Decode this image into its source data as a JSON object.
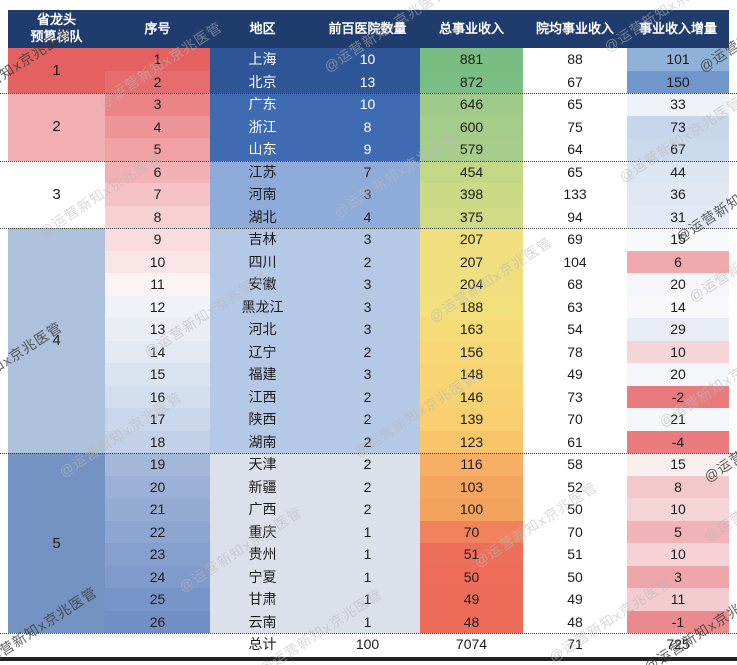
{
  "watermark": {
    "text": "@运营新知x京兆医管",
    "light_color": "#b9b9b9",
    "dark_color": "#3a3a3a"
  },
  "style": {
    "header_bg": "#203C6C",
    "header_fg": "#FFFFFF",
    "body_fg": "#1B1B1B"
  },
  "chart_data": {
    "type": "table",
    "title": "",
    "columns": [
      "省龙头\n预算梯队",
      "序号",
      "地区",
      "前百医院数量",
      "总事业收入",
      "院均事业收入",
      "事业收入增量"
    ],
    "tiers": [
      {
        "label": "1",
        "row_span": 2,
        "bg": "#E36161"
      },
      {
        "label": "2",
        "row_span": 3,
        "bg": "#F2AFB2"
      },
      {
        "label": "3",
        "row_span": 3,
        "bg": "#FFFFFF"
      },
      {
        "label": "4",
        "row_span": 10,
        "bg": "#ADC0DC"
      },
      {
        "label": "5",
        "row_span": 8,
        "bg": "#7593C2"
      }
    ],
    "rows": [
      {
        "rank": "1",
        "region": "上海",
        "hospitals": "10",
        "total": "881",
        "avg": "88",
        "inc": "101",
        "rank_bg": "#E36161",
        "block_bg": "#2E5596",
        "block_fg": "#FFFFFF",
        "total_bg": "#79BD83",
        "inc_bg": "#8FB0D7"
      },
      {
        "rank": "2",
        "region": "北京",
        "hospitals": "13",
        "total": "872",
        "avg": "67",
        "inc": "150",
        "rank_bg": "#E66C6D",
        "block_bg": "#2E5596",
        "block_fg": "#FFFFFF",
        "total_bg": "#7BBE84",
        "inc_bg": "#7096CC"
      },
      {
        "rank": "3",
        "region": "广东",
        "hospitals": "10",
        "total": "646",
        "avg": "65",
        "inc": "33",
        "rank_bg": "#EA8486",
        "block_bg": "#3E6BB2",
        "block_fg": "#FFFFFF",
        "total_bg": "#9FCA8A",
        "inc_bg": "#EFF3F8"
      },
      {
        "rank": "4",
        "region": "浙江",
        "hospitals": "8",
        "total": "600",
        "avg": "75",
        "inc": "73",
        "rank_bg": "#ED9597",
        "block_bg": "#3E6BB2",
        "block_fg": "#FFFFFF",
        "total_bg": "#A4CC8B",
        "inc_bg": "#C7D6EA"
      },
      {
        "rank": "5",
        "region": "山东",
        "hospitals": "9",
        "total": "579",
        "avg": "64",
        "inc": "67",
        "rank_bg": "#EFA1A3",
        "block_bg": "#3E6BB2",
        "block_fg": "#FFFFFF",
        "total_bg": "#A7CD8C",
        "inc_bg": "#CBD9EC"
      },
      {
        "rank": "6",
        "region": "江苏",
        "hospitals": "7",
        "total": "454",
        "avg": "65",
        "inc": "44",
        "rank_bg": "#F2B1B3",
        "block_bg": "#8FABD9",
        "block_fg": "#1B1B1B",
        "total_bg": "#C4D787",
        "inc_bg": "#DCE5F2"
      },
      {
        "rank": "7",
        "region": "河南",
        "hospitals": "3",
        "total": "398",
        "avg": "133",
        "inc": "36",
        "rank_bg": "#F5C3C5",
        "block_bg": "#8FABD9",
        "block_fg": "#1B1B1B",
        "total_bg": "#CBDA85",
        "inc_bg": "#E1E8F4"
      },
      {
        "rank": "8",
        "region": "湖北",
        "hospitals": "4",
        "total": "375",
        "avg": "94",
        "inc": "31",
        "rank_bg": "#F7D0D2",
        "block_bg": "#8FABD9",
        "block_fg": "#1B1B1B",
        "total_bg": "#CEDB84",
        "inc_bg": "#E4EAF5"
      },
      {
        "rank": "9",
        "region": "吉林",
        "hospitals": "3",
        "total": "207",
        "avg": "69",
        "inc": "15",
        "rank_bg": "#F9DCDD",
        "block_bg": "#B5C8E6",
        "block_fg": "#1B1B1B",
        "total_bg": "#EFDF7F",
        "inc_bg": "#F7F9FB"
      },
      {
        "rank": "10",
        "region": "四川",
        "hospitals": "2",
        "total": "207",
        "avg": "104",
        "inc": "6",
        "rank_bg": "#FAE5E6",
        "block_bg": "#B5C8E6",
        "block_fg": "#1B1B1B",
        "total_bg": "#EFDF7F",
        "inc_bg": "#F0A9AD"
      },
      {
        "rank": "11",
        "region": "安徽",
        "hospitals": "3",
        "total": "204",
        "avg": "68",
        "inc": "20",
        "rank_bg": "#FBF3F3",
        "block_bg": "#B5C8E6",
        "block_fg": "#1B1B1B",
        "total_bg": "#F0DF7E",
        "inc_bg": "#F4F6F9"
      },
      {
        "rank": "12",
        "region": "黑龙江",
        "hospitals": "3",
        "total": "188",
        "avg": "63",
        "inc": "14",
        "rank_bg": "#EFF3F8",
        "block_bg": "#B5C8E6",
        "block_fg": "#1B1B1B",
        "total_bg": "#F2DF7D",
        "inc_bg": "#F9F9FB"
      },
      {
        "rank": "13",
        "region": "河北",
        "hospitals": "3",
        "total": "163",
        "avg": "54",
        "inc": "29",
        "rank_bg": "#E9EEF5",
        "block_bg": "#B5C8E6",
        "block_fg": "#1B1B1B",
        "total_bg": "#F6DB79",
        "inc_bg": "#E8EDF5"
      },
      {
        "rank": "14",
        "region": "辽宁",
        "hospitals": "2",
        "total": "156",
        "avg": "78",
        "inc": "10",
        "rank_bg": "#E2E9F3",
        "block_bg": "#B5C8E6",
        "block_fg": "#1B1B1B",
        "total_bg": "#F7D776",
        "inc_bg": "#F6D5D8"
      },
      {
        "rank": "15",
        "region": "福建",
        "hospitals": "3",
        "total": "148",
        "avg": "49",
        "inc": "20",
        "rank_bg": "#DAE3F0",
        "block_bg": "#B5C8E6",
        "block_fg": "#1B1B1B",
        "total_bg": "#F8D473",
        "inc_bg": "#F4F6F9"
      },
      {
        "rank": "16",
        "region": "江西",
        "hospitals": "2",
        "total": "146",
        "avg": "73",
        "inc": "-2",
        "rank_bg": "#D2DDED",
        "block_bg": "#B5C8E6",
        "block_fg": "#1B1B1B",
        "total_bg": "#F8D273",
        "inc_bg": "#E97B7E"
      },
      {
        "rank": "17",
        "region": "陕西",
        "hospitals": "2",
        "total": "139",
        "avg": "70",
        "inc": "21",
        "rank_bg": "#CAD7EA",
        "block_bg": "#B5C8E6",
        "block_fg": "#1B1B1B",
        "total_bg": "#F9CE6F",
        "inc_bg": "#F4F6F9"
      },
      {
        "rank": "18",
        "region": "湖南",
        "hospitals": "2",
        "total": "123",
        "avg": "61",
        "inc": "-4",
        "rank_bg": "#C2D1E7",
        "block_bg": "#B5C8E6",
        "block_fg": "#1B1B1B",
        "total_bg": "#FAC569",
        "inc_bg": "#E97B7E"
      },
      {
        "rank": "19",
        "region": "天津",
        "hospitals": "2",
        "total": "116",
        "avg": "58",
        "inc": "15",
        "rank_bg": "#A2B7DA",
        "block_bg": "#DBE0EB",
        "block_fg": "#1B1B1B",
        "total_bg": "#F6AF64",
        "inc_bg": "#F9EFEF"
      },
      {
        "rank": "20",
        "region": "新疆",
        "hospitals": "2",
        "total": "103",
        "avg": "52",
        "inc": "8",
        "rank_bg": "#9BB1D7",
        "block_bg": "#DBE0EB",
        "block_fg": "#1B1B1B",
        "total_bg": "#F4A660",
        "inc_bg": "#F3C8CB"
      },
      {
        "rank": "21",
        "region": "广西",
        "hospitals": "2",
        "total": "100",
        "avg": "50",
        "inc": "10",
        "rank_bg": "#94ACD4",
        "block_bg": "#DBE0EB",
        "block_fg": "#1B1B1B",
        "total_bg": "#F4A35F",
        "inc_bg": "#F5D4D6"
      },
      {
        "rank": "22",
        "region": "重庆",
        "hospitals": "1",
        "total": "70",
        "avg": "70",
        "inc": "5",
        "rank_bg": "#8DA6D1",
        "block_bg": "#DBE0EB",
        "block_fg": "#1B1B1B",
        "total_bg": "#F0835D",
        "inc_bg": "#F0B3B7"
      },
      {
        "rank": "23",
        "region": "贵州",
        "hospitals": "1",
        "total": "51",
        "avg": "51",
        "inc": "10",
        "rank_bg": "#86A0CE",
        "block_bg": "#DBE0EB",
        "block_fg": "#1B1B1B",
        "total_bg": "#ED6E5B",
        "inc_bg": "#F5D2D5"
      },
      {
        "rank": "24",
        "region": "宁夏",
        "hospitals": "1",
        "total": "50",
        "avg": "50",
        "inc": "3",
        "rank_bg": "#7F9ACB",
        "block_bg": "#DBE0EB",
        "block_fg": "#1B1B1B",
        "total_bg": "#ED6D5A",
        "inc_bg": "#EEA6AA"
      },
      {
        "rank": "25",
        "region": "甘肃",
        "hospitals": "1",
        "total": "49",
        "avg": "49",
        "inc": "11",
        "rank_bg": "#7894C8",
        "block_bg": "#DBE0EB",
        "block_fg": "#1B1B1B",
        "total_bg": "#EC6C5A",
        "inc_bg": "#F4CCCF"
      },
      {
        "rank": "26",
        "region": "云南",
        "hospitals": "1",
        "total": "48",
        "avg": "48",
        "inc": "-1",
        "rank_bg": "#718EC5",
        "block_bg": "#DBE0EB",
        "block_fg": "#1B1B1B",
        "total_bg": "#EC6B59",
        "inc_bg": "#EA8A8E"
      }
    ],
    "total_row": {
      "label": "总计",
      "hospitals": "100",
      "total": "7074",
      "avg": "71",
      "inc": "725"
    }
  }
}
